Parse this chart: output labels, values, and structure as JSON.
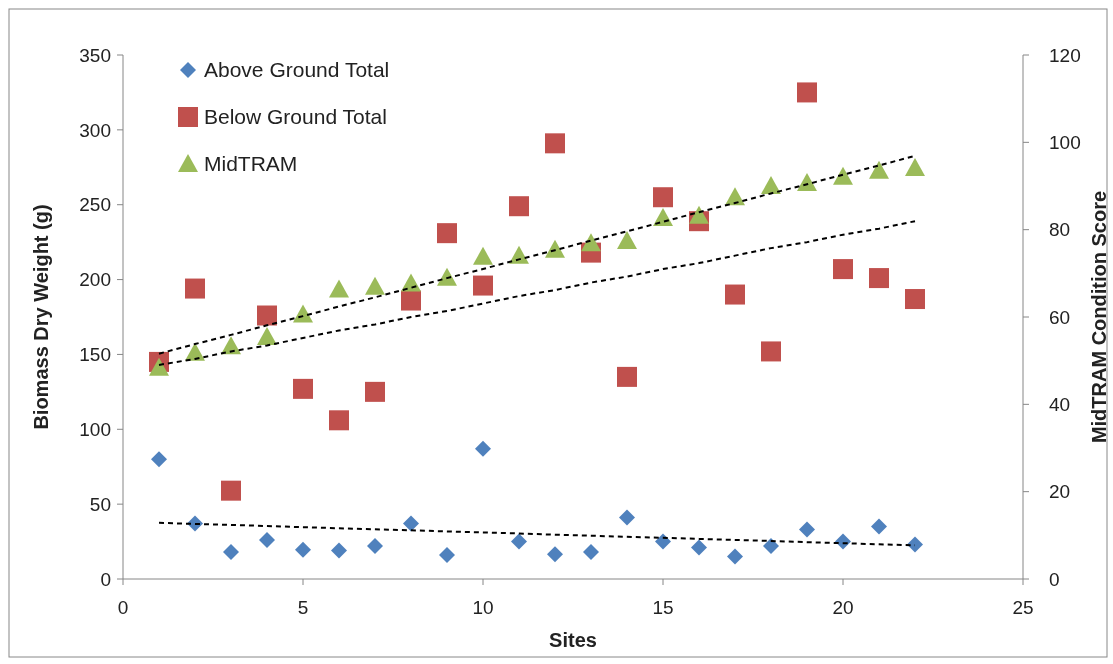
{
  "chart_data": {
    "type": "scatter",
    "xlabel": "Sites",
    "ylabel": "Biomass Dry Weight (g)",
    "y2label": "MidTRAM Condition Score",
    "x": [
      1,
      2,
      3,
      4,
      5,
      6,
      7,
      8,
      9,
      10,
      11,
      12,
      13,
      14,
      15,
      16,
      17,
      18,
      19,
      20,
      21,
      22
    ],
    "xlim": [
      0,
      25
    ],
    "xticks": [
      0,
      5,
      10,
      15,
      20,
      25
    ],
    "ylim": [
      0,
      350
    ],
    "yticks": [
      0,
      50,
      100,
      150,
      200,
      250,
      300,
      350
    ],
    "y2lim": [
      0,
      120
    ],
    "y2ticks": [
      0,
      20,
      40,
      60,
      80,
      100,
      120
    ],
    "grid": false,
    "legend": "top left",
    "series": [
      {
        "name": "Above Ground Total",
        "color": "#4f81bd",
        "marker": "diamond",
        "values": [
          80,
          37,
          18,
          26,
          19.5,
          19,
          22,
          37,
          16,
          87,
          25,
          16.5,
          18,
          41,
          25,
          21,
          15,
          22,
          33,
          25,
          35,
          23
        ]
      },
      {
        "name": "Below Ground Total",
        "color": "#c0504d",
        "marker": "square",
        "values": [
          145,
          194,
          59,
          176,
          127,
          106,
          125,
          186,
          231,
          196,
          249,
          291,
          218,
          135,
          255,
          239,
          190,
          152,
          325,
          207,
          201,
          187
        ]
      },
      {
        "name": "MidTRAM",
        "color": "#9bbb59",
        "marker": "triangle",
        "axis": "y2",
        "values": [
          48.4,
          51.8,
          53.3,
          55.4,
          60.6,
          66.3,
          66.9,
          67.7,
          69,
          73.8,
          74,
          75.4,
          76.9,
          77.4,
          82.7,
          83.2,
          87.4,
          90,
          90.7,
          92.1,
          93.5,
          94.1
        ]
      },
      {
        "type": "line",
        "color": "#000000",
        "line_style": "dashed",
        "marker": "none",
        "values": [
          37.5,
          36.8,
          36.1,
          35.4,
          34.6,
          33.9,
          33.2,
          32.5,
          31.8,
          31.1,
          30.4,
          29.6,
          28.9,
          28.2,
          27.5,
          26.8,
          26.1,
          25.4,
          24.6,
          23.9,
          23.2,
          22.5
        ]
      },
      {
        "type": "line",
        "color": "#000000",
        "line_style": "dashed",
        "marker": "none",
        "values": [
          143,
          147,
          152,
          156,
          161,
          166,
          170,
          175,
          179,
          184,
          189,
          193,
          198,
          202,
          207,
          211,
          216,
          221,
          225,
          230,
          234,
          239
        ]
      },
      {
        "type": "line",
        "color": "#000000",
        "line_style": "dashed",
        "marker": "none",
        "axis": "y2",
        "values": [
          51.6,
          53.8,
          55.9,
          58.1,
          60.2,
          62.4,
          64.5,
          66.7,
          68.9,
          71.0,
          73.2,
          75.3,
          77.5,
          79.6,
          81.8,
          84.0,
          86.1,
          88.3,
          90.4,
          92.6,
          94.7,
          96.9
        ]
      }
    ]
  }
}
